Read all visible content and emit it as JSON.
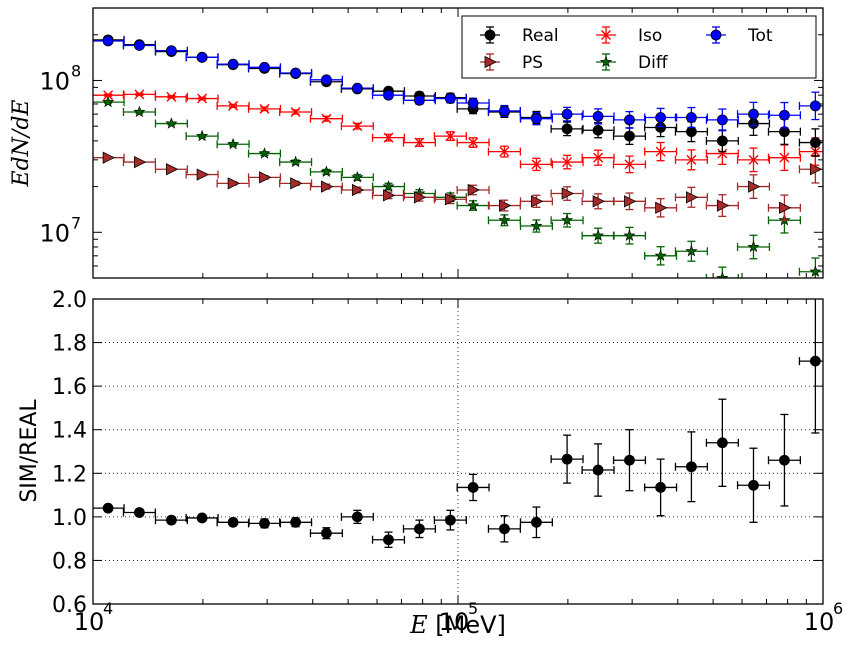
{
  "chart_data": [
    {
      "type": "scatter",
      "panel": "top",
      "ylabel": "EdN/dE",
      "xscale": "log",
      "yscale": "log",
      "xlim": [
        10000,
        1000000
      ],
      "ylim": [
        5000000,
        300000000
      ],
      "yticks": [
        {
          "value": 10000000,
          "base": "10",
          "exp": "7"
        },
        {
          "value": 100000000,
          "base": "10",
          "exp": "8"
        }
      ],
      "legend": {
        "placement": "top-right",
        "ncols": 3
      },
      "series": [
        {
          "name": "Real",
          "color": "#000000",
          "marker": "circle",
          "x": [
            11000,
            13400,
            16400,
            19900,
            24200,
            29500,
            35900,
            43600,
            53000,
            64500,
            78400,
            95300,
            110000,
            134000,
            164000,
            199000,
            242000,
            295000,
            359000,
            436000,
            530000,
            645000,
            784000,
            953000
          ],
          "y": [
            185000000,
            172000000,
            155000000,
            142000000,
            127000000,
            120000000,
            111000000,
            98000000,
            88000000,
            85000000,
            79000000,
            77000000,
            65000000,
            62000000,
            57000000,
            48000000,
            47000000,
            43000000,
            49000000,
            46000000,
            40000000,
            52000000,
            46000000,
            39000000
          ]
        },
        {
          "name": "PS",
          "color": "#a52a2a",
          "marker": "triangle-right",
          "x": [
            11000,
            13400,
            16400,
            19900,
            24200,
            29500,
            35900,
            43600,
            53000,
            64500,
            78400,
            95300,
            110000,
            134000,
            164000,
            199000,
            242000,
            295000,
            359000,
            436000,
            530000,
            645000,
            784000,
            953000
          ],
          "y": [
            31000000,
            29000000,
            26000000,
            24000000,
            21000000,
            23000000,
            21000000,
            20000000,
            19000000,
            17500000,
            17000000,
            16500000,
            19000000,
            15000000,
            16000000,
            18000000,
            16000000,
            16000000,
            14500000,
            17000000,
            15000000,
            20000000,
            14500000,
            26000000
          ]
        },
        {
          "name": "Iso",
          "color": "#ff0000",
          "marker": "x",
          "x": [
            11000,
            13400,
            16400,
            19900,
            24200,
            29500,
            35900,
            43600,
            53000,
            64500,
            78400,
            95300,
            110000,
            134000,
            164000,
            199000,
            242000,
            295000,
            359000,
            436000,
            530000,
            645000,
            784000,
            953000
          ],
          "y": [
            80000000,
            81000000,
            78000000,
            76000000,
            68000000,
            65000000,
            62000000,
            56000000,
            50000000,
            42000000,
            39000000,
            43000000,
            39000000,
            34000000,
            28000000,
            29000000,
            31000000,
            28000000,
            34000000,
            30000000,
            33000000,
            30000000,
            31000000,
            34000000
          ]
        },
        {
          "name": "Diff",
          "color": "#006400",
          "marker": "star",
          "x": [
            11000,
            13400,
            16400,
            19900,
            24200,
            29500,
            35900,
            43600,
            53000,
            64500,
            78400,
            95300,
            110000,
            134000,
            164000,
            199000,
            242000,
            295000,
            359000,
            436000,
            530000,
            645000,
            784000,
            953000
          ],
          "y": [
            72000000,
            62000000,
            52000000,
            43000000,
            38000000,
            33000000,
            29000000,
            25000000,
            23000000,
            20000000,
            18000000,
            17000000,
            15000000,
            12000000,
            11000000,
            12000000,
            9500000,
            9500000,
            7000000,
            7500000,
            5000000,
            8000000,
            12000000,
            5500000
          ]
        },
        {
          "name": "Tot",
          "color": "#0000ff",
          "marker": "circle",
          "x": [
            11000,
            13400,
            16400,
            19900,
            24200,
            29500,
            35900,
            43600,
            53000,
            64500,
            78400,
            95300,
            110000,
            134000,
            164000,
            199000,
            242000,
            295000,
            359000,
            436000,
            530000,
            645000,
            784000,
            953000
          ],
          "y": [
            182000000,
            170000000,
            157000000,
            142000000,
            128000000,
            122000000,
            112000000,
            101000000,
            89000000,
            80000000,
            74000000,
            76000000,
            71000000,
            63000000,
            56000000,
            60000000,
            58000000,
            55000000,
            57000000,
            57000000,
            55000000,
            60000000,
            59000000,
            68000000
          ]
        }
      ]
    },
    {
      "type": "scatter",
      "panel": "bottom",
      "xlabel_math": "E",
      "xlabel_units": "[MeV]",
      "ylabel": "SIM/REAL",
      "xscale": "log",
      "xlim": [
        10000,
        1000000
      ],
      "ylim": [
        0.6,
        2.0
      ],
      "grid": true,
      "xticks": [
        {
          "value": 10000,
          "base": "10",
          "exp": "4"
        },
        {
          "value": 100000,
          "base": "10",
          "exp": "5"
        },
        {
          "value": 1000000,
          "base": "10",
          "exp": "6"
        }
      ],
      "yticks": [
        "0.6",
        "0.8",
        "1.0",
        "1.2",
        "1.4",
        "1.6",
        "1.8",
        "2.0"
      ],
      "series": [
        {
          "name": "SIM/REAL",
          "color": "#000000",
          "marker": "circle",
          "x": [
            11000,
            13400,
            16400,
            19900,
            24200,
            29500,
            35900,
            43600,
            53000,
            64500,
            78400,
            95300,
            110000,
            134000,
            164000,
            199000,
            242000,
            295000,
            359000,
            436000,
            530000,
            645000,
            784000,
            953000
          ],
          "y": [
            1.04,
            1.02,
            0.985,
            0.995,
            0.975,
            0.97,
            0.975,
            0.925,
            1.0,
            0.895,
            0.945,
            0.985,
            1.135,
            0.945,
            0.975,
            1.265,
            1.215,
            1.26,
            1.135,
            1.23,
            1.34,
            1.145,
            1.26,
            1.715
          ],
          "yerr": [
            0.01,
            0.01,
            0.015,
            0.015,
            0.015,
            0.02,
            0.02,
            0.025,
            0.03,
            0.035,
            0.04,
            0.045,
            0.06,
            0.06,
            0.07,
            0.11,
            0.12,
            0.14,
            0.13,
            0.16,
            0.2,
            0.17,
            0.21,
            0.33
          ]
        }
      ]
    }
  ]
}
